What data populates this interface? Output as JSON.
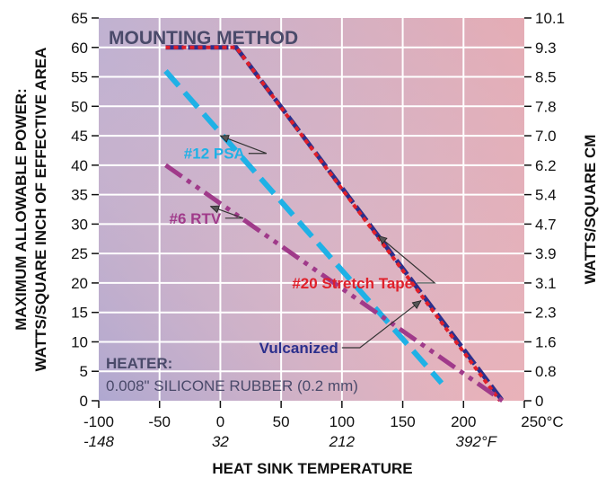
{
  "chart_data": {
    "type": "line",
    "title": "MOUNTING METHOD",
    "xlabel": "HEAT SINK TEMPERATURE",
    "ylabel_lines": [
      "MAXIMUM ALLOWABLE POWER:",
      "WATTS/SQUARE INCH OF EFFECTIVE AREA"
    ],
    "y2label": "WATTS/SQUARE CM",
    "xlim": [
      -100,
      250
    ],
    "ylim": [
      0,
      65
    ],
    "x_ticks": [
      -100,
      -50,
      0,
      50,
      100,
      150,
      200,
      250
    ],
    "x_tick_labels": [
      "-100",
      "-50",
      "0",
      "50",
      "100",
      "150",
      "200",
      "250°C"
    ],
    "x_sub_ticks": [
      -100,
      0,
      100,
      200
    ],
    "x_sub_tick_labels": [
      "-148",
      "32",
      "212",
      "392°F"
    ],
    "y_ticks": [
      0,
      5,
      10,
      15,
      20,
      25,
      30,
      35,
      40,
      45,
      50,
      55,
      60,
      65
    ],
    "y_tick_labels": [
      "0",
      "5",
      "10",
      "15",
      "20",
      "25",
      "30",
      "35",
      "40",
      "45",
      "50",
      "55",
      "60",
      "65"
    ],
    "y2_tick_labels": [
      "0",
      "0.8",
      "1.6",
      "2.3",
      "3.1",
      "3.9",
      "4.7",
      "5.4",
      "6.2",
      "7.0",
      "7.8",
      "8.5",
      "9.3",
      "10.1"
    ],
    "grid": true,
    "series": [
      {
        "name": "Vulcanized",
        "color": "#2b2f8c",
        "dash": "long-dash",
        "points": [
          [
            -45,
            60
          ],
          [
            13,
            60
          ],
          [
            232,
            0
          ]
        ],
        "label_at": [
          97,
          9
        ]
      },
      {
        "name": "#20 Stretch Tape",
        "color": "#e0202a",
        "dash": "dotted",
        "points": [
          [
            -45,
            60
          ],
          [
            13,
            60
          ],
          [
            230,
            0
          ]
        ],
        "label_at": [
          59,
          20
        ]
      },
      {
        "name": "#12 PSA",
        "color": "#1fb1e6",
        "dash": "dash",
        "points": [
          [
            -45,
            56
          ],
          [
            182,
            3
          ]
        ],
        "label_at": [
          -30,
          42
        ]
      },
      {
        "name": "#6 RTV",
        "color": "#a03a8a",
        "dash": "dash-dot-dot",
        "points": [
          [
            -45,
            40
          ],
          [
            232,
            0
          ]
        ],
        "label_at": [
          -42,
          31
        ]
      }
    ],
    "annotations": {
      "heater_label": "HEATER:",
      "heater_text": "0.008\" SILICONE RUBBER (0.2 mm)"
    }
  },
  "colors": {
    "bg_top_left": "#6b6fb8",
    "bg_bottom_right": "#e8a0a0",
    "border_left": "#5a4f7d",
    "border_right": "#e0283a"
  }
}
